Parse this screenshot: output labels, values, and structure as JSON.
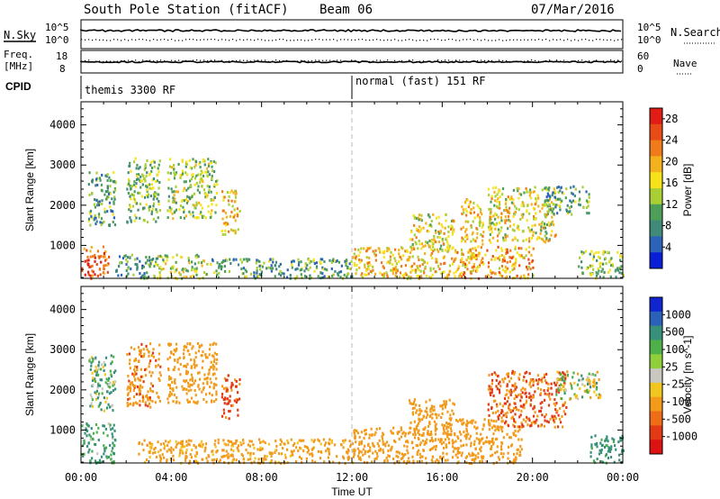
{
  "header": {
    "station": "South Pole Station (fitACF)",
    "beam": "Beam 06",
    "date": "07/Mar/2016"
  },
  "aux_panels": {
    "nsky_label": "N.Sky",
    "nsearch_label": "N.Search",
    "nsky_ticks": [
      "10^5",
      "10^0"
    ],
    "nsearch_ticks": [
      "10^5",
      "10^0"
    ],
    "freq_label_line1": "Freq.",
    "freq_label_line2": "[MHz]",
    "freq_ticks": [
      "18",
      "8"
    ],
    "nave_label": "Nave",
    "nave_ticks": [
      "60",
      "0"
    ],
    "cpid_label": "CPID",
    "cpid_segments": [
      "themis 3300 RF",
      "normal (fast) 151 RF"
    ]
  },
  "colors": {
    "power_scale": [
      "#0a1ed8",
      "#2d62b9",
      "#3f8a78",
      "#4c9e58",
      "#a9cf35",
      "#f6e31a",
      "#f3b11e",
      "#ef7b1b",
      "#e74c16",
      "#e01c15"
    ],
    "velocity_scale": [
      "#1024cf",
      "#2b61b8",
      "#37907a",
      "#4fb04a",
      "#8fcf3a",
      "#c8c8c0",
      "#f1c61e",
      "#f29a1a",
      "#ef6d17",
      "#e23a15",
      "#dd1212"
    ],
    "velocity_ground": "#bfbfbf",
    "grid_line": "#c0c0c0"
  },
  "chart_data": [
    {
      "type": "heatmap",
      "name": "power",
      "xlabel": "",
      "ylabel": "Slant Range [km]",
      "x_ticks": [
        "00:00",
        "04:00",
        "08:00",
        "12:00",
        "16:00",
        "20:00",
        "00:00"
      ],
      "x_range_hours": [
        0,
        24
      ],
      "y_ticks": [
        1000,
        2000,
        3000,
        4000
      ],
      "ylim": [
        180,
        4575
      ],
      "colorbar_label": "Power [dB]",
      "colorbar_ticks": [
        4,
        8,
        12,
        16,
        20,
        24,
        28
      ],
      "colorbar_range": [
        0,
        30
      ],
      "echo_regions": [
        {
          "t": [
            0.0,
            1.2
          ],
          "r": [
            200,
            1000
          ],
          "v": 24
        },
        {
          "t": [
            0.3,
            1.5
          ],
          "r": [
            1500,
            2900
          ],
          "v": 10
        },
        {
          "t": [
            1.5,
            3.0
          ],
          "r": [
            200,
            800
          ],
          "v": 8
        },
        {
          "t": [
            2.0,
            3.5
          ],
          "r": [
            1600,
            3200
          ],
          "v": 12
        },
        {
          "t": [
            3.0,
            5.5
          ],
          "r": [
            200,
            800
          ],
          "v": 14
        },
        {
          "t": [
            3.8,
            6.0
          ],
          "r": [
            1700,
            3200
          ],
          "v": 14
        },
        {
          "t": [
            6.2,
            7.0
          ],
          "r": [
            1300,
            2400
          ],
          "v": 18
        },
        {
          "t": [
            5.5,
            12.0
          ],
          "r": [
            200,
            700
          ],
          "v": 10
        },
        {
          "t": [
            12.0,
            16.0
          ],
          "r": [
            200,
            1000
          ],
          "v": 18
        },
        {
          "t": [
            14.5,
            16.5
          ],
          "r": [
            900,
            1800
          ],
          "v": 16
        },
        {
          "t": [
            16.0,
            20.0
          ],
          "r": [
            200,
            1000
          ],
          "v": 20
        },
        {
          "t": [
            16.8,
            17.8
          ],
          "r": [
            700,
            2200
          ],
          "v": 18
        },
        {
          "t": [
            18.0,
            21.0
          ],
          "r": [
            1100,
            2500
          ],
          "v": 16
        },
        {
          "t": [
            20.5,
            22.5
          ],
          "r": [
            1800,
            2500
          ],
          "v": 10
        },
        {
          "t": [
            22.0,
            24.0
          ],
          "r": [
            200,
            900
          ],
          "v": 12
        }
      ]
    },
    {
      "type": "heatmap",
      "name": "velocity",
      "xlabel": "Time UT",
      "ylabel": "Slant Range [km]",
      "x_ticks": [
        "00:00",
        "04:00",
        "08:00",
        "12:00",
        "16:00",
        "20:00",
        "00:00"
      ],
      "x_range_hours": [
        0,
        24
      ],
      "y_ticks": [
        1000,
        2000,
        3000,
        4000
      ],
      "ylim": [
        180,
        4575
      ],
      "colorbar_label": "Velocity [m s^-1]",
      "colorbar_ticks": [
        "1000",
        "500",
        "100",
        "25",
        "-25",
        "-100",
        "-500",
        "-1000"
      ],
      "echo_regions": [
        {
          "t": [
            0.0,
            1.5
          ],
          "r": [
            200,
            1200
          ],
          "v": 150
        },
        {
          "t": [
            0.3,
            1.5
          ],
          "r": [
            1500,
            2900
          ],
          "v": 80
        },
        {
          "t": [
            2.0,
            3.5
          ],
          "r": [
            1600,
            3200
          ],
          "v": -400
        },
        {
          "t": [
            2.5,
            12.0
          ],
          "r": [
            200,
            800
          ],
          "v": -200
        },
        {
          "t": [
            3.8,
            6.0
          ],
          "r": [
            1700,
            3200
          ],
          "v": -300
        },
        {
          "t": [
            6.2,
            7.0
          ],
          "r": [
            1300,
            2400
          ],
          "v": -600
        },
        {
          "t": [
            12.0,
            16.0
          ],
          "r": [
            200,
            1100
          ],
          "v": -350
        },
        {
          "t": [
            14.5,
            16.5
          ],
          "r": [
            900,
            1800
          ],
          "v": -300
        },
        {
          "t": [
            16.0,
            19.5
          ],
          "r": [
            200,
            1300
          ],
          "v": -250
        },
        {
          "t": [
            18.0,
            21.5
          ],
          "r": [
            1100,
            2500
          ],
          "v": -500
        },
        {
          "t": [
            21.0,
            23.0
          ],
          "r": [
            1800,
            2500
          ],
          "v": 0
        },
        {
          "t": [
            22.5,
            24.0
          ],
          "r": [
            200,
            900
          ],
          "v": 200
        }
      ]
    }
  ]
}
